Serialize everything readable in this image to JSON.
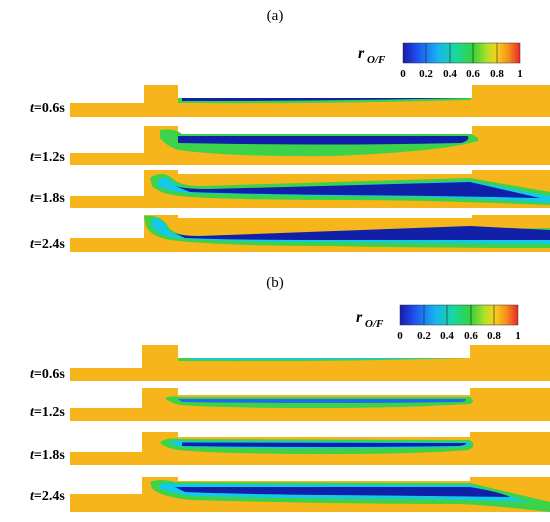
{
  "panels": [
    {
      "tag": "(a)",
      "legend": {
        "symbol": "r",
        "subscript": "O/F",
        "ticks": [
          "0",
          "0.2",
          "0.4",
          "0.6",
          "0.8",
          "1"
        ]
      },
      "rows": [
        {
          "time_label": "t",
          "time_value": "=0.6s"
        },
        {
          "time_label": "t",
          "time_value": "=1.2s"
        },
        {
          "time_label": "t",
          "time_value": "=1.8s"
        },
        {
          "time_label": "t",
          "time_value": "=2.4s"
        }
      ]
    },
    {
      "tag": "(b)",
      "legend": {
        "symbol": "r",
        "subscript": "O/F",
        "ticks": [
          "0",
          "0.2",
          "0.4",
          "0.6",
          "0.8",
          "1"
        ]
      },
      "rows": [
        {
          "time_label": "t",
          "time_value": "=0.6s"
        },
        {
          "time_label": "t",
          "time_value": "=1.2s"
        },
        {
          "time_label": "t",
          "time_value": "=1.8s"
        },
        {
          "time_label": "t",
          "time_value": "=2.4s"
        }
      ]
    }
  ],
  "colors": {
    "fuel_rich": "#f6b51b",
    "dark_blue": "#1020a8",
    "blue": "#1e6bf0",
    "cyan": "#14c8e8",
    "green": "#3cd24a",
    "red": "#e8282a"
  }
}
